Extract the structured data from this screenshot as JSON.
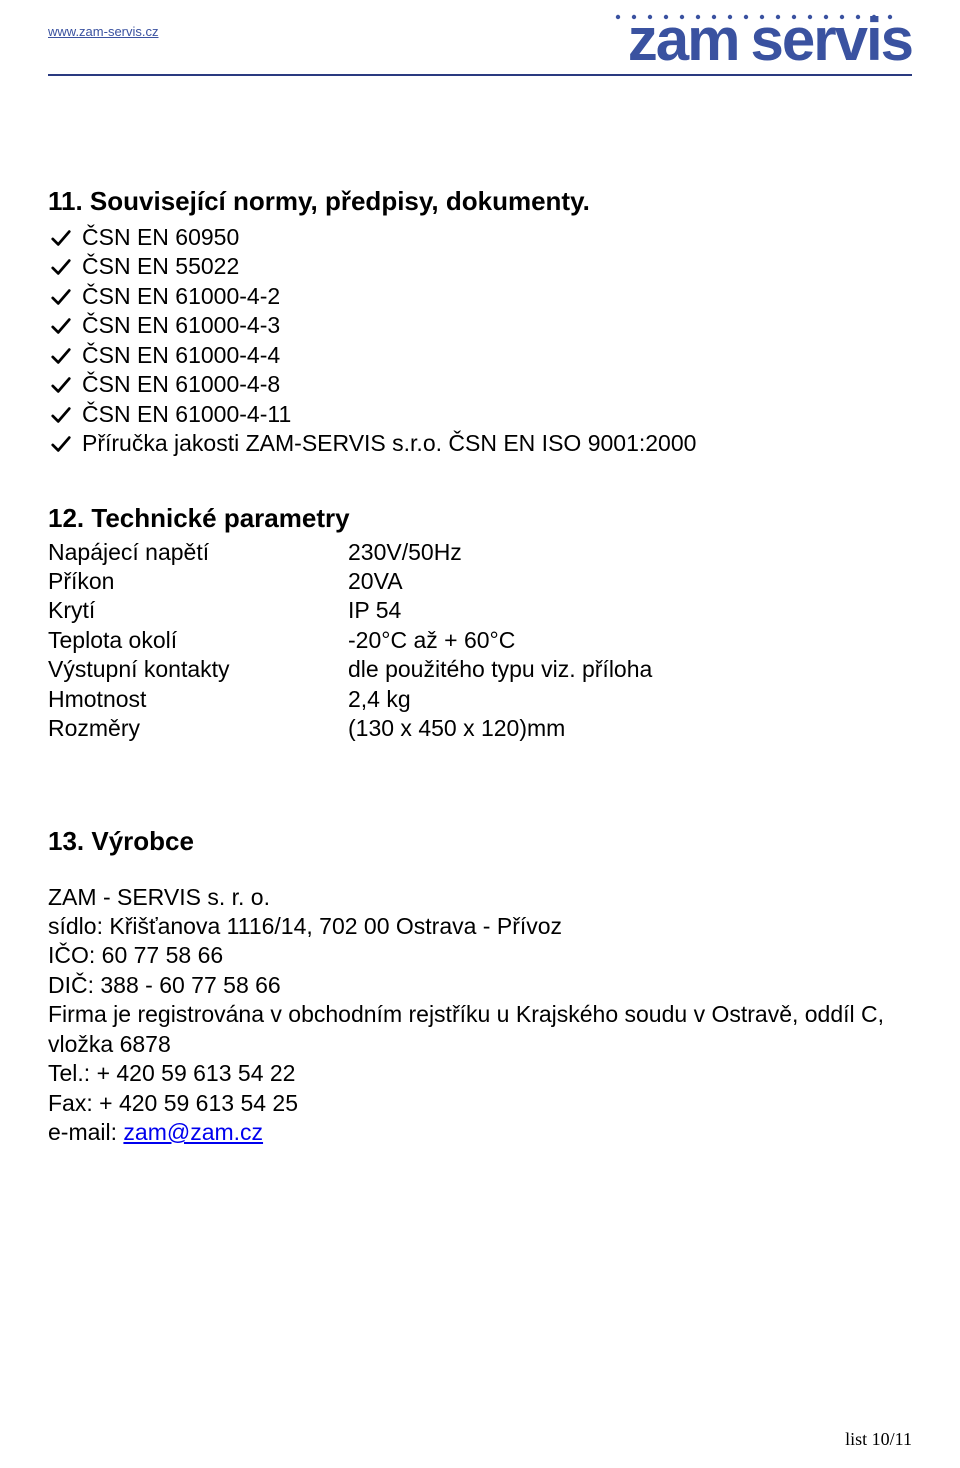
{
  "header": {
    "url": "www.zam-servis.cz",
    "logo_word1": "zam",
    "logo_word2": "servis",
    "logo_color": "#3a52a0",
    "logo_shadow_color": "#b0c0e0",
    "rule_color": "#2a3a80"
  },
  "section11": {
    "heading": "11. Související normy, předpisy, dokumenty.",
    "items": [
      "ČSN EN 60950",
      "ČSN EN 55022",
      "ČSN EN 61000-4-2",
      "ČSN EN 61000-4-3",
      "ČSN EN 61000-4-4",
      "ČSN EN 61000-4-8",
      "ČSN EN 61000-4-11",
      "Příručka jakosti ZAM-SERVIS s.r.o. ČSN EN ISO 9001:2000"
    ]
  },
  "section12": {
    "heading": "12. Technické parametry",
    "rows": [
      {
        "label": "Napájecí napětí",
        "value": "230V/50Hz"
      },
      {
        "label": "Příkon",
        "value": "20VA"
      },
      {
        "label": "Krytí",
        "value": "IP 54"
      },
      {
        "label": "Teplota okolí",
        "value": "-20°C až + 60°C"
      },
      {
        "label": "Výstupní kontakty",
        "value": "dle použitého typu viz. příloha"
      },
      {
        "label": "Hmotnost",
        "value": "2,4 kg"
      },
      {
        "label": "Rozměry",
        "value": "(130 x 450 x 120)mm"
      }
    ]
  },
  "section13": {
    "heading": "13. Výrobce",
    "company_name": "ZAM - SERVIS s. r. o.",
    "address": "sídlo: Křišťanova 1116/14, 702 00 Ostrava - Přívoz",
    "ico": "IČO: 60 77 58 66",
    "dic": "DIČ: 388 - 60 77 58 66",
    "registration": "Firma je registrována v obchodním rejstříku u Krajského soudu v Ostravě, oddíl C, vložka 6878",
    "tel": "Tel.: + 420 59  613 54 22",
    "fax": "Fax: + 420 59  613 54 25",
    "email_label": "e-mail: ",
    "email": "zam@zam.cz"
  },
  "footer": {
    "text": "list 10/11"
  }
}
